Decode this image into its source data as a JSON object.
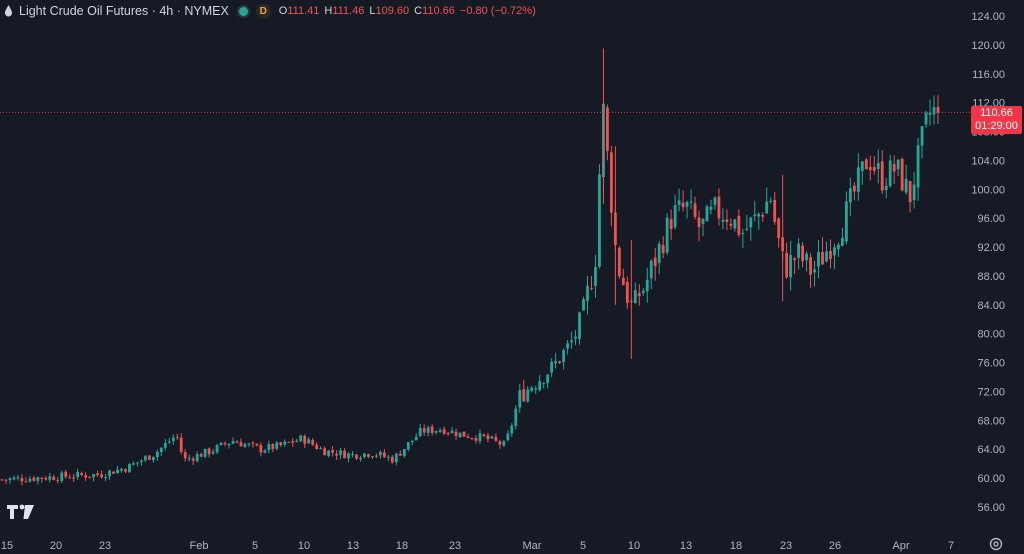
{
  "header": {
    "title": "Light Crude Oil Futures · 4h · NYMEX",
    "status_badge": "D",
    "ohlc": [
      {
        "k": "O",
        "v": "111.41"
      },
      {
        "k": "H",
        "v": "111.46"
      },
      {
        "k": "L",
        "v": "109.60"
      },
      {
        "k": "C",
        "v": "110.66"
      },
      {
        "k": "",
        "v": "−0.80 (−0.72%)"
      }
    ]
  },
  "price_tag": {
    "price": "110.66",
    "countdown": "01:29:00"
  },
  "colors": {
    "up": "#26a69a",
    "down": "#ef5350",
    "background": "#161a25",
    "last_price": "#f23645"
  },
  "icons": [
    "drop-icon",
    "status-dot-icon",
    "tradingview-logo-icon",
    "settings-icon"
  ],
  "chart_data": {
    "type": "candlestick",
    "title": "Light Crude Oil Futures · 4h · NYMEX",
    "yaxis_ticks": [
      "56.00",
      "60.00",
      "64.00",
      "68.00",
      "72.00",
      "76.00",
      "80.00",
      "84.00",
      "88.00",
      "92.00",
      "96.00",
      "100.00",
      "104.00",
      "108.00",
      "112.00",
      "116.00",
      "120.00",
      "124.00"
    ],
    "ylim": [
      54,
      126
    ],
    "xaxis_ticks": [
      "15",
      "20",
      "23",
      "Feb",
      "5",
      "10",
      "13",
      "18",
      "23",
      "Mar",
      "5",
      "10",
      "13",
      "18",
      "23",
      "26",
      "Apr",
      "7"
    ],
    "last_price": 110.66,
    "approx_close_path": [
      [
        0,
        59.8
      ],
      [
        8,
        60.2
      ],
      [
        14,
        60.5
      ],
      [
        18,
        61.5
      ],
      [
        22,
        63.5
      ],
      [
        25,
        66.0
      ],
      [
        26,
        62.5
      ],
      [
        30,
        63.8
      ],
      [
        33,
        65.2
      ],
      [
        37,
        64.0
      ],
      [
        40,
        64.5
      ],
      [
        43,
        65.5
      ],
      [
        46,
        63.8
      ],
      [
        50,
        63.2
      ],
      [
        53,
        63.5
      ],
      [
        56,
        62.6
      ],
      [
        60,
        66.5
      ],
      [
        63,
        66.8
      ],
      [
        66,
        66.0
      ],
      [
        69,
        65.6
      ],
      [
        72,
        64.5
      ],
      [
        73,
        67.5
      ],
      [
        74,
        71.2
      ],
      [
        76,
        73.0
      ],
      [
        79,
        75.5
      ],
      [
        82,
        79.5
      ],
      [
        84,
        86.0
      ],
      [
        85,
        91.0
      ],
      [
        86,
        112.0
      ],
      [
        87,
        101.0
      ],
      [
        88,
        90.0
      ],
      [
        90,
        84.0
      ],
      [
        92,
        86.5
      ],
      [
        94,
        91.5
      ],
      [
        96,
        96.5
      ],
      [
        98,
        97.5
      ],
      [
        100,
        94.5
      ],
      [
        102,
        97.0
      ],
      [
        104,
        96.5
      ],
      [
        106,
        94.0
      ],
      [
        108,
        96.0
      ],
      [
        110,
        99.0
      ],
      [
        111,
        93.5
      ],
      [
        112,
        89.0
      ],
      [
        114,
        91.0
      ],
      [
        116,
        88.5
      ],
      [
        118,
        91.5
      ],
      [
        120,
        94.5
      ],
      [
        122,
        99.5
      ],
      [
        124,
        104.5
      ],
      [
        126,
        101.5
      ],
      [
        128,
        103.0
      ],
      [
        130,
        99.0
      ],
      [
        131,
        103.5
      ],
      [
        132,
        108.0
      ],
      [
        133,
        111.0
      ],
      [
        134,
        110.66
      ]
    ]
  }
}
